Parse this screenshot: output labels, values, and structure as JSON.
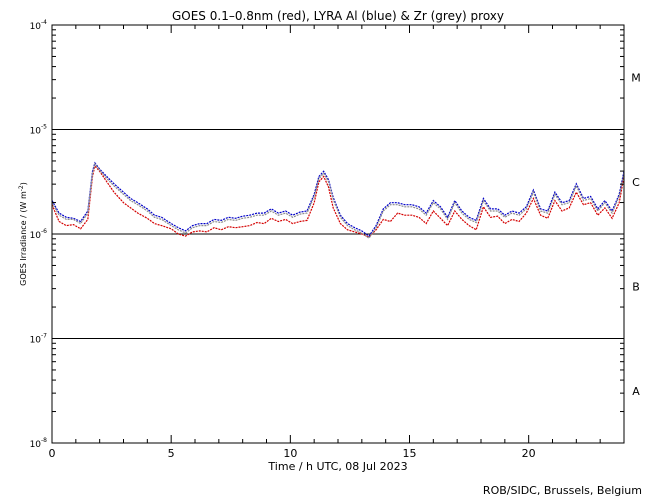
{
  "chart_data": {
    "type": "line",
    "title": "GOES 0.1–0.8nm (red), LYRA Al (blue) & Zr (grey) proxy",
    "xlabel": "Time / h UTC, 08 Jul 2023",
    "ylabel_main": "GOES Irradiance / (W m",
    "ylabel_sup": "-2",
    "ylabel_close": ")",
    "xlim": [
      0,
      24
    ],
    "ylim_log10": [
      -8,
      -4
    ],
    "y_scale": "log",
    "x_ticks": [
      {
        "value": 0,
        "label": "0"
      },
      {
        "value": 5,
        "label": "5"
      },
      {
        "value": 10,
        "label": "10"
      },
      {
        "value": 15,
        "label": "15"
      },
      {
        "value": 20,
        "label": "20"
      }
    ],
    "y_ticks": [
      {
        "exp": -4,
        "base": "10",
        "sup": "-4"
      },
      {
        "exp": -5,
        "base": "10",
        "sup": "-5"
      },
      {
        "exp": -6,
        "base": "10",
        "sup": "-6"
      },
      {
        "exp": -7,
        "base": "10",
        "sup": "-7"
      },
      {
        "exp": -8,
        "base": "10",
        "sup": "-8"
      }
    ],
    "class_lines_log10": [
      -5,
      -6,
      -7
    ],
    "flare_classes": [
      {
        "label": "M",
        "log10": -4.5
      },
      {
        "label": "C",
        "log10": -5.5
      },
      {
        "label": "B",
        "log10": -6.5
      },
      {
        "label": "A",
        "log10": -7.5
      }
    ],
    "x": [
      0,
      0.3,
      0.6,
      0.9,
      1.2,
      1.5,
      1.7,
      1.8,
      2.0,
      2.3,
      2.6,
      3.0,
      3.3,
      3.6,
      4.0,
      4.3,
      4.6,
      5.0,
      5.3,
      5.6,
      5.9,
      6.2,
      6.5,
      6.8,
      7.1,
      7.4,
      7.7,
      8.0,
      8.3,
      8.6,
      8.9,
      9.2,
      9.5,
      9.8,
      10.1,
      10.4,
      10.7,
      11.0,
      11.2,
      11.4,
      11.6,
      11.8,
      12.1,
      12.4,
      12.7,
      13.0,
      13.3,
      13.6,
      13.9,
      14.2,
      14.5,
      14.8,
      15.1,
      15.4,
      15.7,
      16.0,
      16.3,
      16.6,
      16.9,
      17.2,
      17.5,
      17.8,
      18.1,
      18.4,
      18.7,
      19.0,
      19.3,
      19.6,
      19.9,
      20.2,
      20.5,
      20.8,
      21.1,
      21.4,
      21.7,
      22.0,
      22.3,
      22.6,
      22.9,
      23.2,
      23.5,
      23.8,
      24.0
    ],
    "series": [
      {
        "color": "#d40000",
        "log10": [
          -5.72,
          -5.88,
          -5.92,
          -5.91,
          -5.95,
          -5.86,
          -5.45,
          -5.35,
          -5.4,
          -5.5,
          -5.6,
          -5.7,
          -5.75,
          -5.8,
          -5.85,
          -5.9,
          -5.92,
          -5.95,
          -6.0,
          -6.02,
          -5.98,
          -5.97,
          -5.98,
          -5.94,
          -5.96,
          -5.93,
          -5.94,
          -5.93,
          -5.92,
          -5.89,
          -5.9,
          -5.85,
          -5.88,
          -5.86,
          -5.9,
          -5.88,
          -5.87,
          -5.7,
          -5.5,
          -5.45,
          -5.55,
          -5.75,
          -5.9,
          -5.96,
          -5.98,
          -6.0,
          -6.03,
          -5.96,
          -5.86,
          -5.88,
          -5.8,
          -5.82,
          -5.82,
          -5.84,
          -5.9,
          -5.78,
          -5.85,
          -5.92,
          -5.78,
          -5.86,
          -5.92,
          -5.96,
          -5.74,
          -5.84,
          -5.83,
          -5.9,
          -5.86,
          -5.88,
          -5.8,
          -5.66,
          -5.82,
          -5.85,
          -5.68,
          -5.78,
          -5.75,
          -5.6,
          -5.72,
          -5.7,
          -5.82,
          -5.75,
          -5.85,
          -5.7,
          -5.45
        ]
      },
      {
        "color": "#0000c8",
        "log10": [
          -5.68,
          -5.8,
          -5.84,
          -5.85,
          -5.88,
          -5.78,
          -5.4,
          -5.32,
          -5.38,
          -5.45,
          -5.52,
          -5.6,
          -5.66,
          -5.7,
          -5.76,
          -5.82,
          -5.84,
          -5.9,
          -5.94,
          -5.97,
          -5.92,
          -5.9,
          -5.9,
          -5.86,
          -5.87,
          -5.84,
          -5.85,
          -5.83,
          -5.82,
          -5.8,
          -5.8,
          -5.76,
          -5.8,
          -5.78,
          -5.82,
          -5.79,
          -5.78,
          -5.62,
          -5.45,
          -5.4,
          -5.48,
          -5.65,
          -5.82,
          -5.9,
          -5.94,
          -5.97,
          -6.02,
          -5.92,
          -5.76,
          -5.7,
          -5.7,
          -5.72,
          -5.72,
          -5.74,
          -5.8,
          -5.68,
          -5.74,
          -5.84,
          -5.68,
          -5.78,
          -5.84,
          -5.87,
          -5.66,
          -5.76,
          -5.76,
          -5.82,
          -5.78,
          -5.8,
          -5.74,
          -5.58,
          -5.76,
          -5.78,
          -5.6,
          -5.7,
          -5.68,
          -5.52,
          -5.66,
          -5.64,
          -5.76,
          -5.68,
          -5.78,
          -5.62,
          -5.4
        ]
      },
      {
        "color": "#8c8c8c",
        "log10": [
          -5.7,
          -5.82,
          -5.86,
          -5.86,
          -5.9,
          -5.8,
          -5.42,
          -5.33,
          -5.39,
          -5.47,
          -5.54,
          -5.62,
          -5.68,
          -5.72,
          -5.78,
          -5.84,
          -5.86,
          -5.92,
          -5.96,
          -5.99,
          -5.94,
          -5.92,
          -5.92,
          -5.88,
          -5.89,
          -5.86,
          -5.87,
          -5.85,
          -5.84,
          -5.82,
          -5.82,
          -5.78,
          -5.82,
          -5.8,
          -5.84,
          -5.81,
          -5.8,
          -5.64,
          -5.47,
          -5.42,
          -5.5,
          -5.67,
          -5.84,
          -5.92,
          -5.96,
          -5.99,
          -6.04,
          -5.94,
          -5.78,
          -5.72,
          -5.72,
          -5.74,
          -5.74,
          -5.76,
          -5.82,
          -5.7,
          -5.76,
          -5.86,
          -5.7,
          -5.8,
          -5.86,
          -5.89,
          -5.68,
          -5.78,
          -5.78,
          -5.84,
          -5.8,
          -5.82,
          -5.76,
          -5.6,
          -5.78,
          -5.8,
          -5.62,
          -5.72,
          -5.7,
          -5.54,
          -5.68,
          -5.66,
          -5.78,
          -5.7,
          -5.8,
          -5.64,
          -5.42
        ]
      }
    ]
  },
  "credit": "ROB/SIDC, Brussels, Belgium"
}
